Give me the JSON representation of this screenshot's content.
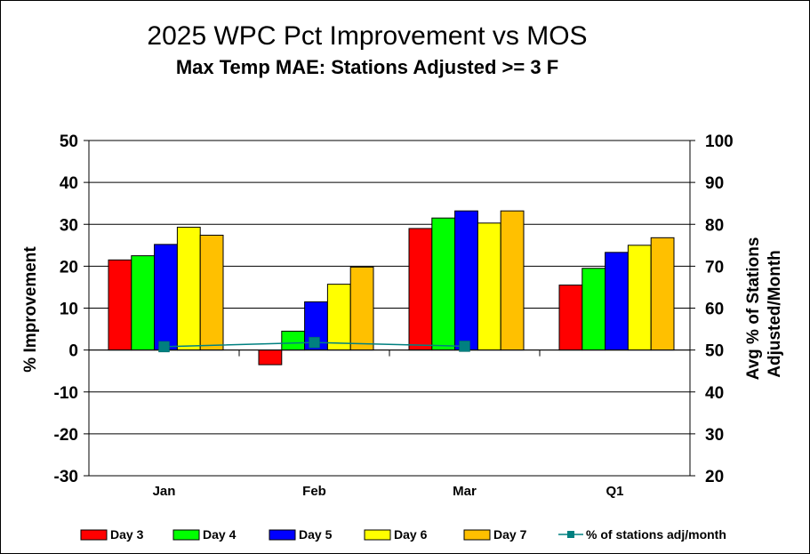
{
  "chart_data": {
    "type": "bar",
    "title": "2025 WPC Pct Improvement  vs MOS",
    "subtitle": "Max Temp MAE:  Stations Adjusted >= 3 F",
    "categories": [
      "Jan",
      "Feb",
      "Mar",
      "Q1"
    ],
    "ylabel": "% Improvement",
    "y2label_line1": "Avg % of Stations",
    "y2label_line2": "Adjusted/Month",
    "ylim": [
      -30,
      50
    ],
    "y2lim": [
      20,
      100
    ],
    "yticks": [
      -30,
      -20,
      -10,
      0,
      10,
      20,
      30,
      40,
      50
    ],
    "y2ticks": [
      20,
      30,
      40,
      50,
      60,
      70,
      80,
      90,
      100
    ],
    "grid": true,
    "legend_position": "bottom",
    "series": [
      {
        "name": "Day 3",
        "color": "#ff0000",
        "values": [
          21.5,
          -3.5,
          29.0,
          15.5
        ]
      },
      {
        "name": "Day 4",
        "color": "#00ff00",
        "values": [
          22.5,
          4.5,
          31.5,
          19.5
        ]
      },
      {
        "name": "Day 5",
        "color": "#0000ff",
        "values": [
          25.2,
          11.5,
          33.2,
          23.3
        ]
      },
      {
        "name": "Day 6",
        "color": "#ffff00",
        "values": [
          29.3,
          15.7,
          30.3,
          25.0
        ]
      },
      {
        "name": "Day 7",
        "color": "#ffc000",
        "values": [
          27.4,
          19.8,
          33.2,
          26.8
        ]
      }
    ],
    "line_series": {
      "name": "% of stations adj/month",
      "color": "#008080",
      "axis": "secondary",
      "values": [
        50.8,
        51.8,
        50.9
      ]
    }
  }
}
